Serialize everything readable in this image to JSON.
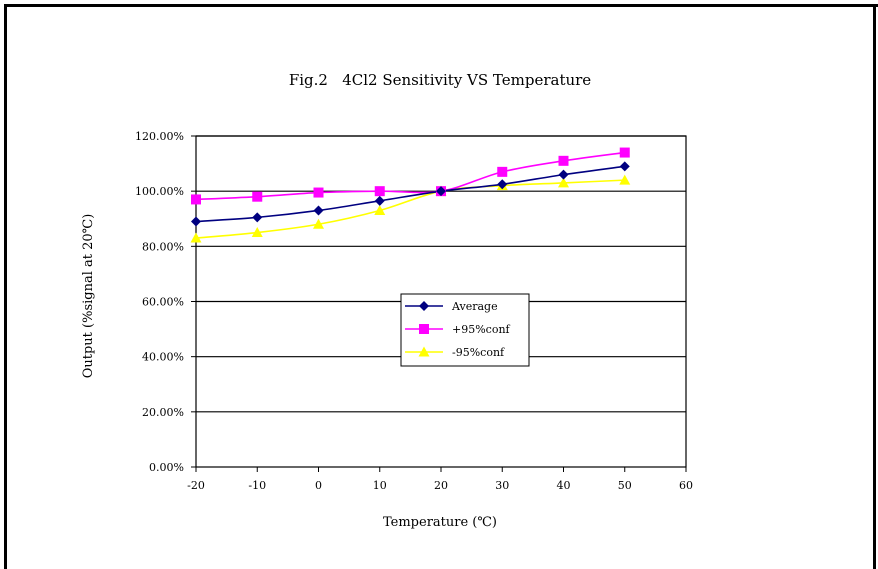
{
  "chart_data": {
    "type": "line",
    "title": "Fig.2   4Cl2 Sensitivity VS Temperature",
    "xlabel": "Temperature (℃)",
    "ylabel": "Output (%signal at 20℃)",
    "x": [
      -20,
      -10,
      0,
      10,
      20,
      30,
      40,
      50
    ],
    "xlim": [
      -20,
      60
    ],
    "xticks": [
      "-20",
      "-10",
      "0",
      "10",
      "20",
      "30",
      "40",
      "50",
      "60"
    ],
    "ylim": [
      0,
      120
    ],
    "yticks": [
      "0.00%",
      "20.00%",
      "40.00%",
      "60.00%",
      "80.00%",
      "100.00%",
      "120.00%"
    ],
    "grid": "horizontal",
    "legend_position": "center",
    "series": [
      {
        "name": "Average",
        "color": "#000080",
        "marker": "diamond",
        "values": [
          89,
          90.5,
          93,
          96.5,
          100,
          102.5,
          106,
          109
        ]
      },
      {
        "name": "+95%conf",
        "color": "#ff00ff",
        "marker": "square",
        "values": [
          97,
          98,
          99.5,
          100,
          100,
          107,
          111,
          114
        ]
      },
      {
        "name": "-95%conf",
        "color": "#ffff00",
        "marker": "triangle",
        "values": [
          83,
          85,
          88,
          93,
          100,
          102,
          103,
          104
        ]
      }
    ]
  }
}
